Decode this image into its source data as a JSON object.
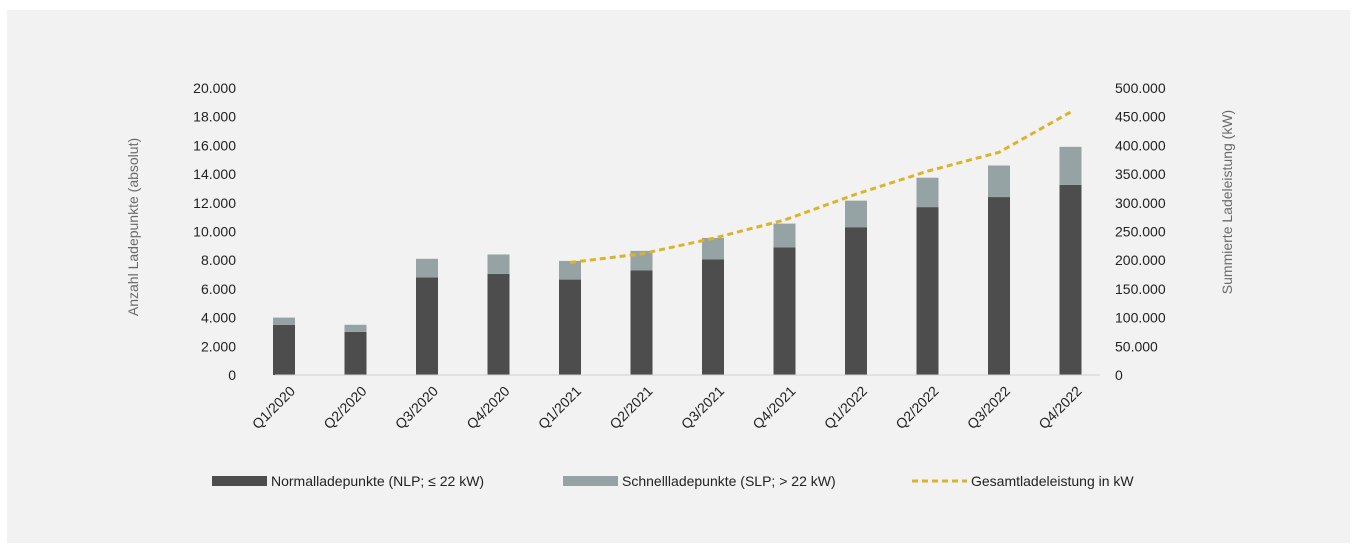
{
  "chart_data": {
    "type": "bar",
    "stacked": true,
    "categories": [
      "Q1/2020",
      "Q2/2020",
      "Q3/2020",
      "Q4/2020",
      "Q1/2021",
      "Q2/2021",
      "Q3/2021",
      "Q4/2021",
      "Q1/2022",
      "Q2/2022",
      "Q3/2022",
      "Q4/2022"
    ],
    "series": [
      {
        "name": "Normalladepunkte (NLP; ≤ 22 kW)",
        "axis": "left",
        "kind": "bar",
        "color": "#4d4d4d",
        "values": [
          3500,
          3000,
          6800,
          7050,
          6650,
          7300,
          8050,
          8900,
          10300,
          11700,
          12400,
          13250
        ]
      },
      {
        "name": "Schnellladepunkte (SLP; > 22 kW)",
        "axis": "left",
        "kind": "bar",
        "color": "#95a3a4",
        "values": [
          500,
          500,
          1300,
          1350,
          1300,
          1350,
          1500,
          1650,
          1850,
          2050,
          2200,
          2650
        ]
      },
      {
        "name": "Gesamtladeleistung in kW",
        "axis": "right",
        "kind": "line",
        "style": "dashed",
        "color": "#dcb42a",
        "values": [
          null,
          null,
          null,
          null,
          196000,
          211000,
          238000,
          270000,
          315000,
          355000,
          388000,
          458000
        ]
      }
    ],
    "ylabel_left": "Anzahl Ladepunkte (absolut)",
    "ylabel_right": "Summierte Ladeleistung (kW)",
    "ylim_left": [
      0,
      20000
    ],
    "ylim_right": [
      0,
      500000
    ],
    "yticks_left": [
      "0",
      "2.000",
      "4.000",
      "6.000",
      "8.000",
      "10.000",
      "12.000",
      "14.000",
      "16.000",
      "18.000",
      "20.000"
    ],
    "yticks_right": [
      "0",
      "50.000",
      "100.000",
      "150.000",
      "200.000",
      "250.000",
      "300.000",
      "350.000",
      "400.000",
      "450.000",
      "500.000"
    ],
    "grid": false,
    "legend_position": "bottom"
  }
}
